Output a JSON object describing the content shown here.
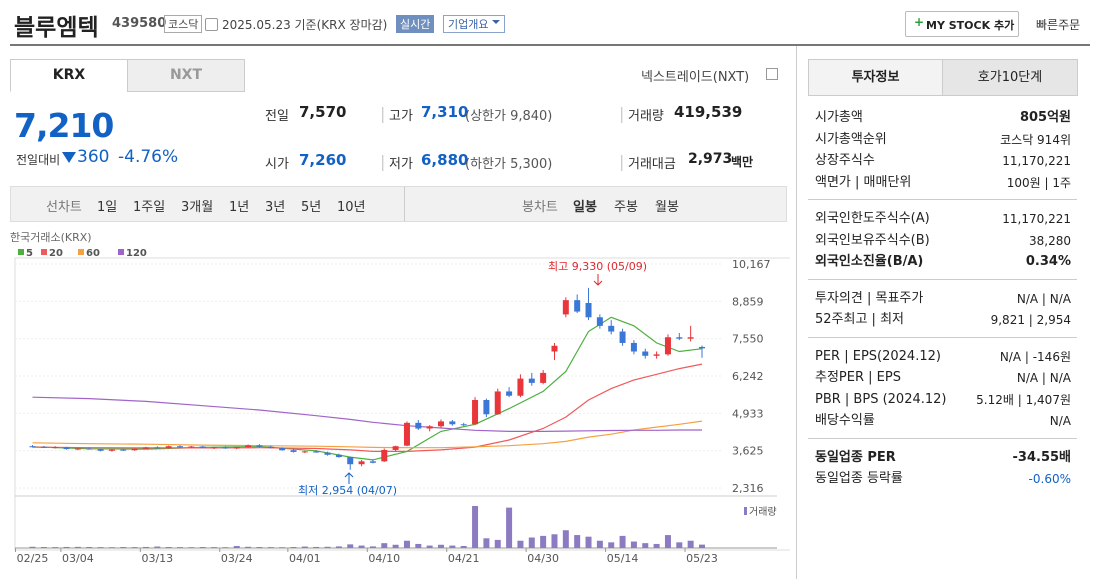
{
  "header": {
    "name": "블루엠텍",
    "code": "439580",
    "market": "코스닥",
    "date": "2025.05.23 기준(KRX 장마감)",
    "realtime": "실시간",
    "overview": "기업개요",
    "mystock": "MY STOCK 추가",
    "quick_order": "빠른주문"
  },
  "tabs": [
    "KRX",
    "NXT"
  ],
  "nxt_link": "넥스트레이드(NXT)",
  "price": {
    "current": "7,210",
    "change_label": "전일대비",
    "change": "360",
    "change_pct": "-4.76%"
  },
  "stats": [
    {
      "label": "전일",
      "value": "7,570"
    },
    {
      "label": "고가",
      "value": "7,310",
      "note": "(상한가 9,840)"
    },
    {
      "label": "거래량",
      "value": "419,539"
    },
    {
      "label": "시가",
      "value": "7,260"
    },
    {
      "label": "저가",
      "value": "6,880",
      "note": "(하한가 5,300)"
    },
    {
      "label": "거래대금",
      "value": "2,973",
      "unit": "백만"
    }
  ],
  "toolbar": {
    "line_label": "선차트",
    "periods": [
      "1일",
      "1주일",
      "3개월",
      "1년",
      "3년",
      "5년",
      "10년"
    ],
    "candle_label": "봉차트",
    "candle_periods": [
      "일봉",
      "주봉",
      "월봉"
    ]
  },
  "chart_data": {
    "type": "candlestick",
    "subtitle": "한국거래소(KRX)",
    "categories": [
      "02/25",
      null,
      null,
      null,
      "03/04",
      null,
      null,
      null,
      null,
      null,
      null,
      "03/13",
      null,
      null,
      null,
      null,
      null,
      null,
      "03/24",
      null,
      null,
      null,
      null,
      null,
      "04/01",
      null,
      null,
      null,
      null,
      null,
      null,
      "04/10",
      null,
      null,
      null,
      null,
      null,
      null,
      "04/21",
      null,
      null,
      null,
      null,
      null,
      null,
      "04/30",
      null,
      null,
      null,
      null,
      null,
      null,
      "05/14",
      null,
      null,
      null,
      null,
      null,
      null,
      "05/23"
    ],
    "open": [
      3780,
      3760,
      3730,
      3740,
      3680,
      3700,
      3670,
      3620,
      3660,
      3640,
      3690,
      3740,
      3720,
      3780,
      3740,
      3770,
      3720,
      3740,
      3700,
      3750,
      3810,
      3760,
      3720,
      3640,
      3580,
      3600,
      3560,
      3480,
      3400,
      3150,
      3250,
      3250,
      3650,
      3800,
      4600,
      4400,
      4480,
      4650,
      4550,
      4550,
      5400,
      4900,
      5700,
      5550,
      6150,
      6000,
      7100,
      8400,
      8900,
      8800,
      8300,
      8000,
      7800,
      7400,
      7100,
      6950,
      7000,
      7600,
      7550,
      7260
    ],
    "high": [
      3820,
      3790,
      3780,
      3760,
      3720,
      3740,
      3700,
      3680,
      3690,
      3700,
      3760,
      3780,
      3800,
      3810,
      3790,
      3790,
      3760,
      3780,
      3760,
      3840,
      3850,
      3800,
      3740,
      3680,
      3620,
      3640,
      3590,
      3520,
      3420,
      3300,
      3320,
      3700,
      3800,
      4650,
      4700,
      4520,
      4720,
      4700,
      4600,
      5500,
      5450,
      5800,
      5850,
      6300,
      6350,
      6450,
      7400,
      9000,
      9100,
      9330,
      8400,
      8200,
      7900,
      7500,
      7200,
      7100,
      7700,
      7750,
      8000,
      7310
    ],
    "low": [
      3740,
      3720,
      3700,
      3660,
      3640,
      3660,
      3600,
      3590,
      3620,
      3620,
      3670,
      3700,
      3700,
      3720,
      3720,
      3700,
      3680,
      3690,
      3680,
      3730,
      3740,
      3700,
      3620,
      3560,
      3540,
      3550,
      3450,
      3380,
      2954,
      3080,
      3180,
      3230,
      3600,
      3780,
      4350,
      4300,
      4420,
      4500,
      4480,
      4520,
      4800,
      4880,
      5500,
      5500,
      5900,
      5950,
      6800,
      8300,
      8450,
      8200,
      7900,
      7700,
      7300,
      7000,
      6850,
      6850,
      6950,
      7500,
      7450,
      6880
    ],
    "close": [
      3760,
      3730,
      3750,
      3680,
      3700,
      3670,
      3620,
      3660,
      3640,
      3690,
      3740,
      3720,
      3780,
      3740,
      3770,
      3720,
      3740,
      3700,
      3750,
      3810,
      3760,
      3720,
      3640,
      3580,
      3600,
      3560,
      3480,
      3400,
      3150,
      3250,
      3200,
      3650,
      3780,
      4600,
      4400,
      4480,
      4650,
      4550,
      4520,
      5400,
      4900,
      5700,
      5550,
      6150,
      6000,
      6350,
      7300,
      8900,
      8500,
      8300,
      8000,
      7800,
      7400,
      7100,
      6950,
      7000,
      7600,
      7550,
      7600,
      7210
    ],
    "up_color": "#e8363b",
    "down_color": "#3b77d6",
    "volume_label": "거래량",
    "volume_color": "#8c7bc2",
    "volume": [
      150000,
      120000,
      110000,
      130000,
      140000,
      120000,
      110000,
      100000,
      120000,
      110000,
      130000,
      180000,
      120000,
      110000,
      100000,
      120000,
      110000,
      100000,
      250000,
      150000,
      120000,
      110000,
      100000,
      120000,
      180000,
      130000,
      150000,
      200000,
      450000,
      300000,
      200000,
      600000,
      400000,
      900000,
      500000,
      300000,
      400000,
      300000,
      250000,
      5200000,
      1200000,
      1000000,
      5000000,
      900000,
      1300000,
      1500000,
      1700000,
      2200000,
      1600000,
      1400000,
      900000,
      700000,
      1500000,
      800000,
      600000,
      500000,
      1600000,
      700000,
      900000,
      419539
    ],
    "ma": [
      {
        "name": "5",
        "color": "#4caf3f",
        "x": [
          0,
          5,
          10,
          15,
          20,
          25,
          28,
          30,
          33,
          36,
          39,
          42,
          45,
          47,
          49,
          51,
          53,
          55,
          57,
          59
        ],
        "values": [
          3760,
          3690,
          3680,
          3740,
          3770,
          3620,
          3400,
          3300,
          3600,
          4300,
          4550,
          5100,
          5700,
          6400,
          7800,
          8300,
          8000,
          7400,
          7100,
          7200
        ]
      },
      {
        "name": "20",
        "color": "#f05a5a",
        "x": [
          0,
          5,
          10,
          15,
          20,
          25,
          28,
          30,
          33,
          36,
          39,
          42,
          45,
          47,
          49,
          51,
          53,
          55,
          57,
          59
        ],
        "values": [
          3750,
          3730,
          3720,
          3720,
          3730,
          3700,
          3650,
          3600,
          3600,
          3650,
          3750,
          4000,
          4400,
          4800,
          5400,
          5800,
          6100,
          6300,
          6500,
          6660
        ]
      },
      {
        "name": "60",
        "color": "#f5a142",
        "x": [
          0,
          5,
          10,
          15,
          20,
          25,
          28,
          30,
          33,
          36,
          39,
          42,
          45,
          47,
          49,
          51,
          53,
          55,
          57,
          59
        ],
        "values": [
          3900,
          3870,
          3850,
          3820,
          3800,
          3780,
          3760,
          3740,
          3730,
          3730,
          3760,
          3800,
          3870,
          3950,
          4100,
          4200,
          4350,
          4450,
          4550,
          4660
        ]
      },
      {
        "name": "120",
        "color": "#a064c8",
        "x": [
          0,
          5,
          10,
          15,
          20,
          25,
          28,
          30,
          33,
          36,
          39,
          42,
          45,
          47,
          49,
          51,
          53,
          55,
          57,
          59
        ],
        "values": [
          5500,
          5450,
          5350,
          5200,
          5050,
          4850,
          4720,
          4620,
          4500,
          4420,
          4340,
          4300,
          4300,
          4310,
          4320,
          4330,
          4340,
          4340,
          4350,
          4350
        ]
      }
    ],
    "ylim": [
      2316,
      10167
    ],
    "yticks": [
      {
        "value": 10167,
        "label": "10,167"
      },
      {
        "value": 8859,
        "label": "8,859"
      },
      {
        "value": 7550,
        "label": "7,550"
      },
      {
        "value": 6242,
        "label": "6,242"
      },
      {
        "value": 4933,
        "label": "4,933"
      },
      {
        "value": 3625,
        "label": "3,625"
      },
      {
        "value": 2316,
        "label": "2,316"
      }
    ],
    "grid": true,
    "annotations": {
      "high": "최고 9,330 (05/09)",
      "low": "최저 2,954 (04/07)"
    }
  },
  "side": {
    "tabs": [
      "투자정보",
      "호가10단계"
    ],
    "groups": [
      [
        {
          "label": "시가총액",
          "value": "805억원"
        },
        {
          "label": "시가총액순위",
          "value": "코스닥 914위"
        },
        {
          "label": "상장주식수",
          "value": "11,170,221"
        },
        {
          "label": "액면가 | 매매단위",
          "value": "100원 | 1주"
        }
      ],
      [
        {
          "label": "외국인한도주식수(A)",
          "value": "11,170,221"
        },
        {
          "label": "외국인보유주식수(B)",
          "value": "38,280"
        },
        {
          "label": "외국인소진율(B/A)",
          "value": "0.34%"
        }
      ],
      [
        {
          "label": "투자의견 | 목표주가",
          "value": "N/A | N/A"
        },
        {
          "label": "52주최고 | 최저",
          "value": "9,821 | 2,954"
        }
      ],
      [
        {
          "label": "PER | EPS(2024.12)",
          "value": "N/A | -146원"
        },
        {
          "label": "추정PER | EPS",
          "value": "N/A | N/A"
        },
        {
          "label": "PBR | BPS (2024.12)",
          "value": "5.12배 | 1,407원"
        },
        {
          "label": "배당수익률",
          "value": "N/A"
        }
      ],
      [
        {
          "label": "동일업종 PER",
          "value": "-34.55배"
        },
        {
          "label": "동일업종 등락률",
          "value": "-0.60%"
        }
      ]
    ]
  }
}
